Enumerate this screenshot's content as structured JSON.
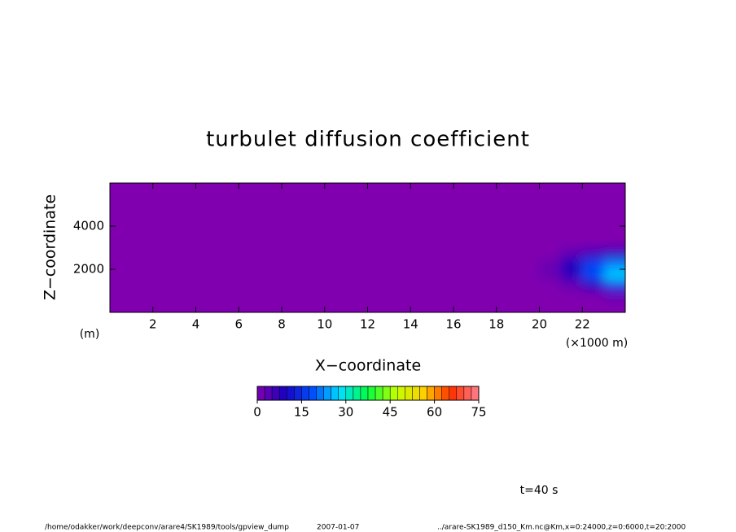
{
  "chart_data": {
    "type": "heatmap",
    "title": "turbulet diffusion coefficient",
    "x_label": "X−coordinate",
    "y_label": "Z−coordinate",
    "y_unit": "(m)",
    "x_unit": "(×1000 m)",
    "time_label": "t=40 s",
    "footer_path": "/home/odakker/work/deepconv/arare4/SK1989/tools/gpview_dump",
    "footer_date": "2007-01-07",
    "footer_source": "../arare-SK1989_d150_Km.nc@Km,x=0:24000,z=0:6000,t=20:2000",
    "xlim": [
      0,
      24
    ],
    "xticks": [
      2,
      4,
      6,
      8,
      10,
      12,
      14,
      16,
      18,
      20,
      22
    ],
    "ylim": [
      0,
      6000
    ],
    "yticks": [
      2000,
      4000
    ],
    "x": [
      0.5,
      1.5,
      2.5,
      3.5,
      4.5,
      5.5,
      6.5,
      7.5,
      8.5,
      9.5,
      10.5,
      11.5,
      12.5,
      13.5,
      14.5,
      15.5,
      16.5,
      17.5,
      18.5,
      19.5,
      20.5,
      21.5,
      22.5,
      23.5
    ],
    "y": [
      250,
      750,
      1250,
      1750,
      2250,
      2750,
      3250,
      3750,
      4250,
      4750,
      5250,
      5750
    ],
    "z": [
      [
        0,
        0,
        0,
        0,
        0,
        0,
        0,
        0,
        0,
        0,
        0,
        0,
        0,
        0,
        0,
        0,
        0,
        0,
        0,
        0,
        0,
        0,
        0,
        0
      ],
      [
        0,
        0,
        0,
        0,
        0,
        0,
        0,
        0,
        0,
        0,
        0,
        0,
        0,
        0,
        0,
        0,
        0,
        0,
        0,
        0,
        0,
        0,
        0,
        2
      ],
      [
        0,
        0,
        0,
        0,
        0,
        0,
        0,
        0,
        0,
        0,
        0,
        0,
        0,
        0,
        0,
        0,
        0,
        0,
        0,
        0,
        0,
        2,
        8,
        15
      ],
      [
        0,
        0,
        0,
        0,
        0,
        0,
        0,
        0,
        0,
        0,
        0,
        0,
        0,
        0,
        0,
        0,
        0,
        0,
        0,
        0,
        2,
        8,
        18,
        27
      ],
      [
        0,
        0,
        0,
        0,
        0,
        0,
        0,
        0,
        0,
        0,
        0,
        0,
        0,
        0,
        0,
        0,
        0,
        0,
        0,
        0,
        2,
        9,
        17,
        22
      ],
      [
        0,
        0,
        0,
        0,
        0,
        0,
        0,
        0,
        0,
        0,
        0,
        0,
        0,
        0,
        0,
        0,
        0,
        0,
        0,
        0,
        0,
        3,
        6,
        8
      ],
      [
        0,
        0,
        0,
        0,
        0,
        0,
        0,
        0,
        0,
        0,
        0,
        0,
        0,
        0,
        0,
        0,
        0,
        0,
        0,
        0,
        0,
        0,
        0,
        0
      ],
      [
        0,
        0,
        0,
        0,
        0,
        0,
        0,
        0,
        0,
        0,
        0,
        0,
        0,
        0,
        0,
        0,
        0,
        0,
        0,
        0,
        0,
        0,
        0,
        0
      ],
      [
        0,
        0,
        0,
        0,
        0,
        0,
        0,
        0,
        0,
        0,
        0,
        0,
        0,
        0,
        0,
        0,
        0,
        0,
        0,
        0,
        0,
        0,
        0,
        0
      ],
      [
        0,
        0,
        0,
        0,
        0,
        0,
        0,
        0,
        0,
        0,
        0,
        0,
        0,
        0,
        0,
        0,
        0,
        0,
        0,
        0,
        0,
        0,
        0,
        0
      ],
      [
        0,
        0,
        0,
        0,
        0,
        0,
        0,
        0,
        0,
        0,
        0,
        0,
        0,
        0,
        0,
        0,
        0,
        0,
        0,
        0,
        0,
        0,
        0,
        0
      ],
      [
        0,
        0,
        0,
        0,
        0,
        0,
        0,
        0,
        0,
        0,
        0,
        0,
        0,
        0,
        0,
        0,
        0,
        0,
        0,
        0,
        0,
        0,
        0,
        0
      ]
    ],
    "colorbar_lim": [
      0,
      75
    ],
    "colorbar_ticks": [
      0,
      15,
      30,
      45,
      60,
      75
    ],
    "colormap": [
      "#8000b0",
      "#1a00c0",
      "#0050ff",
      "#00e0ff",
      "#00ff40",
      "#c0ff00",
      "#ffd000",
      "#ff3000",
      "#ff8090"
    ]
  }
}
